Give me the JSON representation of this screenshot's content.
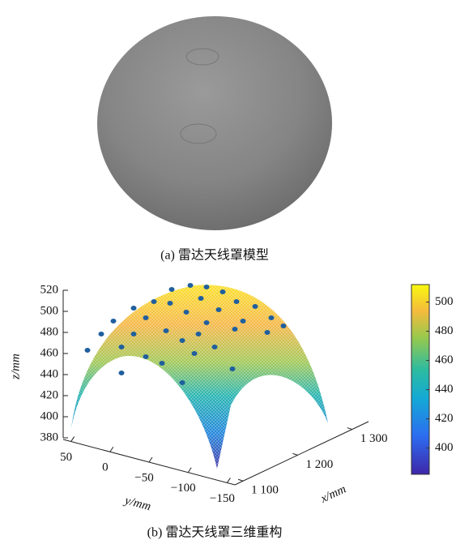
{
  "figure_a": {
    "caption": "(a) 雷达天线罩模型"
  },
  "chart_data": {
    "type": "surface3d",
    "zlabel": "z/mm",
    "ylabel": "y/mm",
    "xlabel": "x/mm",
    "zlim": [
      380,
      520
    ],
    "zticks": [
      380,
      400,
      420,
      440,
      460,
      480,
      500,
      520
    ],
    "ylim": [
      60,
      -160
    ],
    "yticks": [
      50,
      0,
      {
        "value": -50,
        "label": "−50"
      },
      {
        "value": -100,
        "label": "−100"
      },
      {
        "value": -150,
        "label": "−150"
      }
    ],
    "xlim": [
      1085,
      1330
    ],
    "xticks": [
      {
        "value": 1100,
        "label": "1 100"
      },
      {
        "value": 1200,
        "label": "1 200"
      },
      {
        "value": 1300,
        "label": "1 300"
      }
    ],
    "colorbar": {
      "clim": [
        382,
        512
      ],
      "ticks": [
        400,
        420,
        440,
        460,
        480,
        500
      ]
    }
  },
  "figure_b": {
    "caption": "(b) 雷达天线罩三维重构"
  }
}
